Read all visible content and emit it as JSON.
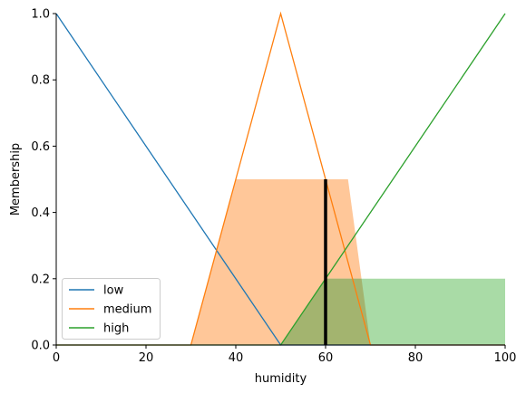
{
  "chart_data": {
    "type": "line",
    "xlabel": "humidity",
    "ylabel": "Membership",
    "xlim": [
      0,
      100
    ],
    "ylim": [
      0,
      1.0
    ],
    "xticks": [
      "0",
      "20",
      "40",
      "60",
      "80",
      "100"
    ],
    "yticks": [
      "0.0",
      "0.2",
      "0.4",
      "0.6",
      "0.8",
      "1.0"
    ],
    "grid": false,
    "legend_position": "lower-left",
    "series": [
      {
        "name": "low",
        "color": "#1f77b4",
        "x": [
          0,
          50,
          100
        ],
        "y": [
          1.0,
          0.0,
          0.0
        ]
      },
      {
        "name": "medium",
        "color": "#ff7f0e",
        "x": [
          0,
          30,
          50,
          70,
          100
        ],
        "y": [
          0.0,
          0.0,
          1.0,
          0.0,
          0.0
        ]
      },
      {
        "name": "high",
        "color": "#2ca02c",
        "x": [
          0,
          50,
          100
        ],
        "y": [
          0.0,
          0.0,
          1.0
        ]
      }
    ],
    "fills": [
      {
        "series": "medium",
        "color": "#ffc799",
        "x": [
          30,
          40,
          65,
          70
        ],
        "y": [
          0.0,
          0.5,
          0.5,
          0.0
        ]
      },
      {
        "series": "high",
        "color": "#a9dba6",
        "x": [
          50,
          60,
          100,
          100
        ],
        "y": [
          0.0,
          0.2,
          0.2,
          0.0
        ]
      },
      {
        "series": "overlap",
        "color": "#a3b46f",
        "x": [
          50,
          60,
          68,
          70
        ],
        "y": [
          0.0,
          0.2,
          0.2,
          0.0
        ]
      }
    ],
    "marker": {
      "x": 60,
      "y": 0.5,
      "color": "#000000"
    }
  }
}
